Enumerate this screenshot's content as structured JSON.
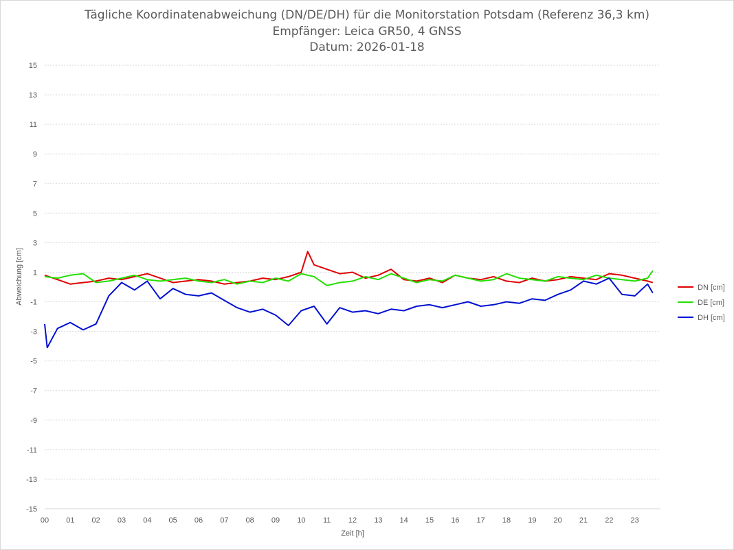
{
  "chart_data": {
    "type": "line",
    "title": "Tägliche Koordinatenabweichung (DN/DE/DH) für die Monitorstation Potsdam (Referenz 36,3 km)",
    "subtitle_1": "Empfänger: Leica GR50, 4 GNSS",
    "subtitle_2": "Datum: 2026-01-18",
    "xlabel": "Zeit [h]",
    "ylabel": "Abweichung [cm]",
    "xlim": [
      0,
      24
    ],
    "ylim": [
      -15,
      15
    ],
    "y_ticks": [
      "15",
      "13",
      "11",
      "9",
      "7",
      "5",
      "3",
      "1",
      "-1",
      "-3",
      "-5",
      "-7",
      "-9",
      "-11",
      "-13",
      "-15"
    ],
    "x_ticks": [
      "00",
      "01",
      "02",
      "03",
      "04",
      "05",
      "06",
      "07",
      "08",
      "09",
      "10",
      "11",
      "12",
      "13",
      "14",
      "15",
      "16",
      "17",
      "18",
      "19",
      "20",
      "21",
      "22",
      "23"
    ],
    "grid": true,
    "legend_position": "right",
    "series": [
      {
        "name": "DN [cm]",
        "color": "#e00000",
        "x": [
          0,
          0.5,
          1,
          1.5,
          2,
          2.5,
          3,
          3.5,
          4,
          4.5,
          5,
          5.5,
          6,
          6.5,
          7,
          7.5,
          8,
          8.5,
          9,
          9.5,
          10,
          10.25,
          10.5,
          11,
          11.5,
          12,
          12.5,
          13,
          13.5,
          14,
          14.5,
          15,
          15.5,
          16,
          16.5,
          17,
          17.5,
          18,
          18.5,
          19,
          19.5,
          20,
          20.5,
          21,
          21.5,
          22,
          22.5,
          23,
          23.5,
          23.7
        ],
        "y": [
          0.8,
          0.5,
          0.2,
          0.3,
          0.4,
          0.6,
          0.5,
          0.7,
          0.9,
          0.6,
          0.3,
          0.4,
          0.5,
          0.4,
          0.2,
          0.3,
          0.4,
          0.6,
          0.5,
          0.7,
          1.0,
          2.4,
          1.5,
          1.2,
          0.9,
          1.0,
          0.6,
          0.8,
          1.2,
          0.5,
          0.4,
          0.6,
          0.3,
          0.8,
          0.6,
          0.5,
          0.7,
          0.4,
          0.3,
          0.6,
          0.4,
          0.5,
          0.7,
          0.6,
          0.5,
          0.9,
          0.8,
          0.6,
          0.4,
          0.3
        ]
      },
      {
        "name": "DE [cm]",
        "color": "#22e000",
        "x": [
          0,
          0.5,
          1,
          1.5,
          2,
          2.5,
          3,
          3.5,
          4,
          4.5,
          5,
          5.5,
          6,
          6.5,
          7,
          7.5,
          8,
          8.5,
          9,
          9.5,
          10,
          10.5,
          11,
          11.5,
          12,
          12.5,
          13,
          13.5,
          14,
          14.5,
          15,
          15.5,
          16,
          16.5,
          17,
          17.5,
          18,
          18.5,
          19,
          19.5,
          20,
          20.5,
          21,
          21.5,
          22,
          22.5,
          23,
          23.5,
          23.7
        ],
        "y": [
          0.7,
          0.6,
          0.8,
          0.9,
          0.3,
          0.4,
          0.6,
          0.8,
          0.5,
          0.4,
          0.5,
          0.6,
          0.4,
          0.3,
          0.5,
          0.2,
          0.4,
          0.3,
          0.6,
          0.4,
          0.9,
          0.7,
          0.1,
          0.3,
          0.4,
          0.7,
          0.5,
          0.9,
          0.6,
          0.3,
          0.5,
          0.4,
          0.8,
          0.6,
          0.4,
          0.5,
          0.9,
          0.6,
          0.5,
          0.4,
          0.7,
          0.6,
          0.5,
          0.8,
          0.6,
          0.5,
          0.4,
          0.6,
          1.1
        ]
      },
      {
        "name": "DH [cm]",
        "color": "#0010d0",
        "x": [
          0,
          0.1,
          0.5,
          1,
          1.5,
          2,
          2.5,
          3,
          3.5,
          4,
          4.5,
          5,
          5.5,
          6,
          6.5,
          7,
          7.5,
          8,
          8.5,
          9,
          9.5,
          10,
          10.5,
          11,
          11.5,
          12,
          12.5,
          13,
          13.5,
          14,
          14.5,
          15,
          15.5,
          16,
          16.5,
          17,
          17.5,
          18,
          18.5,
          19,
          19.5,
          20,
          20.5,
          21,
          21.5,
          22,
          22.5,
          23,
          23.5,
          23.7
        ],
        "y": [
          -2.5,
          -4.1,
          -2.8,
          -2.4,
          -2.9,
          -2.5,
          -0.6,
          0.3,
          -0.2,
          0.4,
          -0.8,
          -0.1,
          -0.5,
          -0.6,
          -0.4,
          -0.9,
          -1.4,
          -1.7,
          -1.5,
          -1.9,
          -2.6,
          -1.6,
          -1.3,
          -2.5,
          -1.4,
          -1.7,
          -1.6,
          -1.8,
          -1.5,
          -1.6,
          -1.3,
          -1.2,
          -1.4,
          -1.2,
          -1.0,
          -1.3,
          -1.2,
          -1.0,
          -1.1,
          -0.8,
          -0.9,
          -0.5,
          -0.2,
          0.4,
          0.2,
          0.6,
          -0.5,
          -0.6,
          0.2,
          -0.4
        ]
      }
    ]
  }
}
